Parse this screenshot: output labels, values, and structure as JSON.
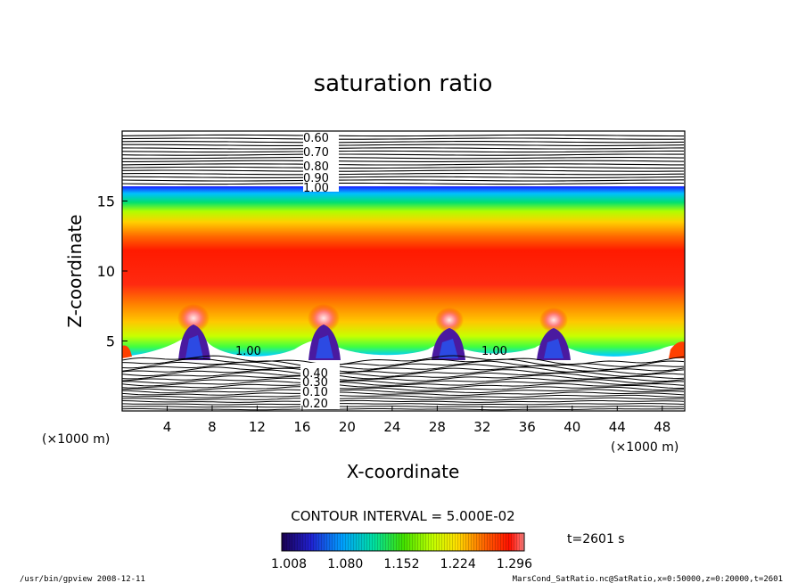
{
  "chart_data": {
    "type": "heatmap",
    "title": "saturation ratio",
    "xlabel": "X-coordinate",
    "ylabel": "Z-coordinate",
    "x_unit": "(×1000 m)",
    "y_unit": "(×1000 m)",
    "xlim": [
      0,
      50
    ],
    "ylim": [
      0,
      20
    ],
    "x_ticks": [
      4,
      8,
      12,
      16,
      20,
      24,
      28,
      32,
      36,
      40,
      44,
      48
    ],
    "y_ticks": [
      5,
      10,
      15
    ],
    "contour_labels": [
      "0.60",
      "0.70",
      "0.80",
      "0.90",
      "1.00",
      "1.00",
      "1.00",
      "0.20",
      "0.10",
      "0.30",
      "0.40"
    ],
    "contour_interval_text": "CONTOUR INTERVAL = 5.000E-02",
    "colorbar_ticks": [
      "1.008",
      "1.080",
      "1.152",
      "1.224",
      "1.296"
    ],
    "colorbar_range": [
      1.008,
      1.296
    ],
    "time_label": "t=2601 s",
    "colors": [
      "#1a0070",
      "#2a40ff",
      "#00c8ff",
      "#00e060",
      "#a0ff00",
      "#ffff00",
      "#ff9000",
      "#ff2000",
      "#ff6060"
    ]
  },
  "footer": {
    "left": "/usr/bin/gpview   2008-12-11",
    "right": "MarsCond_SatRatio.nc@SatRatio,x=0:50000,z=0:20000,t=2601"
  }
}
